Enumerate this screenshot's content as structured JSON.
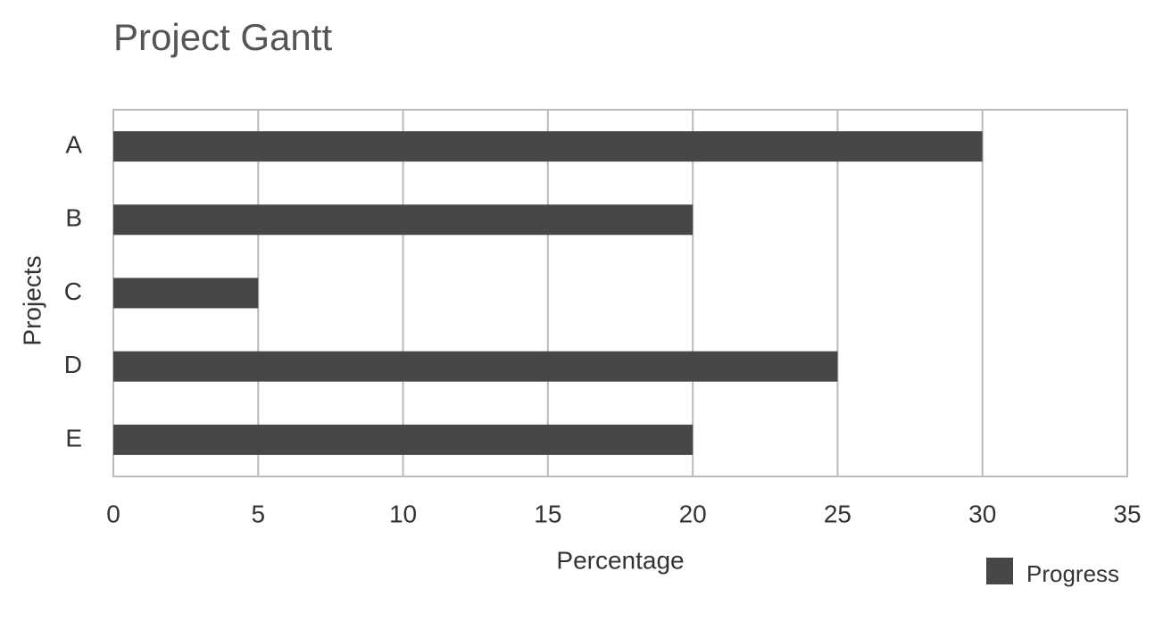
{
  "chart_data": {
    "type": "bar",
    "horizontal": true,
    "title": "Project Gantt",
    "x_label": "Percentage",
    "y_label": "Projects",
    "categories": [
      "A",
      "B",
      "C",
      "D",
      "E"
    ],
    "series": [
      {
        "name": "Progress",
        "color": "#474747",
        "values": [
          30,
          20,
          5,
          25,
          20
        ]
      }
    ],
    "xlim": [
      0,
      35
    ],
    "xticks": [
      0,
      5,
      10,
      15,
      20,
      25,
      30,
      35
    ],
    "grid": true,
    "legend": "bottom-right"
  }
}
